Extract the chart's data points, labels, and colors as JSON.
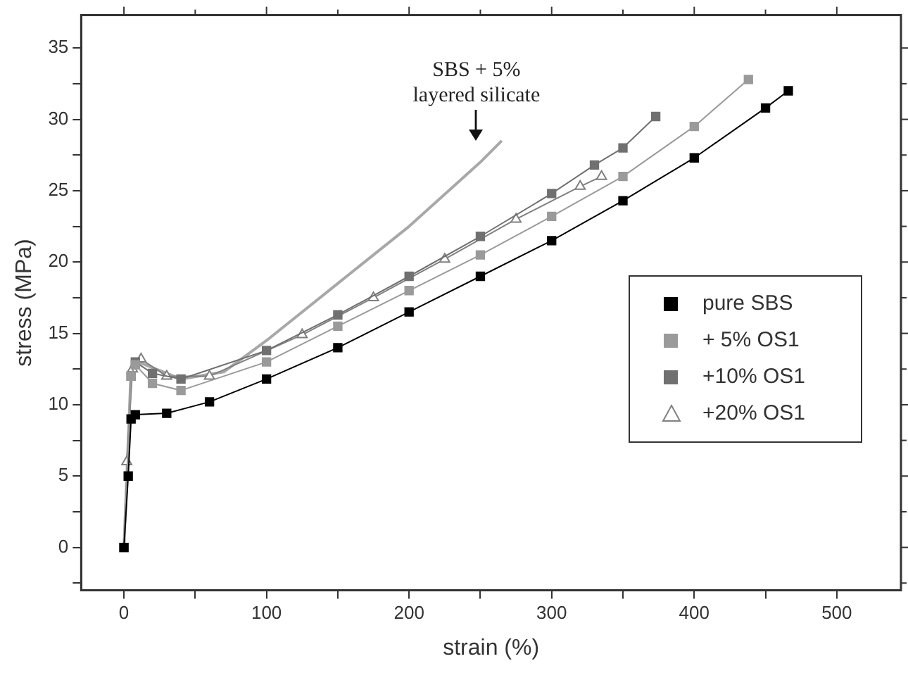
{
  "chart_data": {
    "type": "line",
    "xlabel": "strain (%)",
    "ylabel": "stress (MPa)",
    "xlim": [
      -30,
      545
    ],
    "ylim": [
      -3,
      37.3
    ],
    "xticks": [
      0,
      {
        "value": 50,
        "label": null
      },
      100,
      {
        "value": 150,
        "label": null
      },
      200,
      {
        "value": 250,
        "label": null
      },
      300,
      {
        "value": 350,
        "label": null
      },
      400,
      {
        "value": 450,
        "label": null
      },
      500
    ],
    "yticks": [
      {
        "value": -2.5,
        "label": null
      },
      0,
      {
        "value": 2.5,
        "label": null
      },
      5,
      {
        "value": 7.5,
        "label": null
      },
      10,
      {
        "value": 12.5,
        "label": null
      },
      15,
      {
        "value": 17.5,
        "label": null
      },
      20,
      {
        "value": 22.5,
        "label": null
      },
      25,
      {
        "value": 27.5,
        "label": null
      },
      30,
      {
        "value": 32.5,
        "label": null
      },
      35
    ],
    "grid": false,
    "legend": "right",
    "line_style": "solid",
    "series": [
      {
        "name": "pure SBS",
        "color": "#000000",
        "marker": "square",
        "x": [
          0,
          3,
          5,
          8,
          30,
          60,
          100,
          150,
          200,
          250,
          300,
          350,
          400,
          450,
          466
        ],
        "values": [
          0,
          5,
          9,
          9.3,
          9.4,
          10.2,
          11.8,
          14,
          16.5,
          19,
          21.5,
          24.3,
          27.3,
          30.8,
          32
        ]
      },
      {
        "name": "+ 5% OS1",
        "color": "#9a9a9a",
        "marker": "square",
        "x": [
          0,
          5,
          8,
          20,
          40,
          100,
          150,
          200,
          250,
          300,
          350,
          400,
          438
        ],
        "values": [
          0,
          12,
          12.8,
          11.5,
          11,
          13,
          15.5,
          18,
          20.5,
          23.2,
          26,
          29.5,
          32.8
        ]
      },
      {
        "name": "+10% OS1",
        "color": "#707070",
        "marker": "square",
        "x": [
          0,
          5,
          8,
          20,
          40,
          100,
          150,
          200,
          250,
          300,
          330,
          350,
          373
        ],
        "values": [
          0,
          12,
          13,
          12.2,
          11.8,
          13.8,
          16.3,
          19,
          21.8,
          24.8,
          26.8,
          28,
          30.2
        ]
      },
      {
        "name": "+20% OS1",
        "color": "#808080",
        "marker": "triangle",
        "x": [
          2,
          6,
          12,
          30,
          60,
          125,
          175,
          225,
          275,
          320,
          335
        ],
        "values": [
          6,
          12.5,
          13.2,
          12,
          12,
          14.9,
          17.5,
          20.2,
          23,
          25.3,
          26
        ]
      },
      {
        "color": "#a8a8a8",
        "marker": "none",
        "x": [
          0,
          5,
          10,
          40,
          70,
          100,
          150,
          200,
          250,
          265
        ],
        "values": [
          0,
          12.5,
          13,
          11.8,
          12.3,
          14.5,
          18.5,
          22.5,
          27,
          28.5
        ]
      }
    ],
    "annotations": [
      "SBS + 5% layered silicate"
    ]
  }
}
